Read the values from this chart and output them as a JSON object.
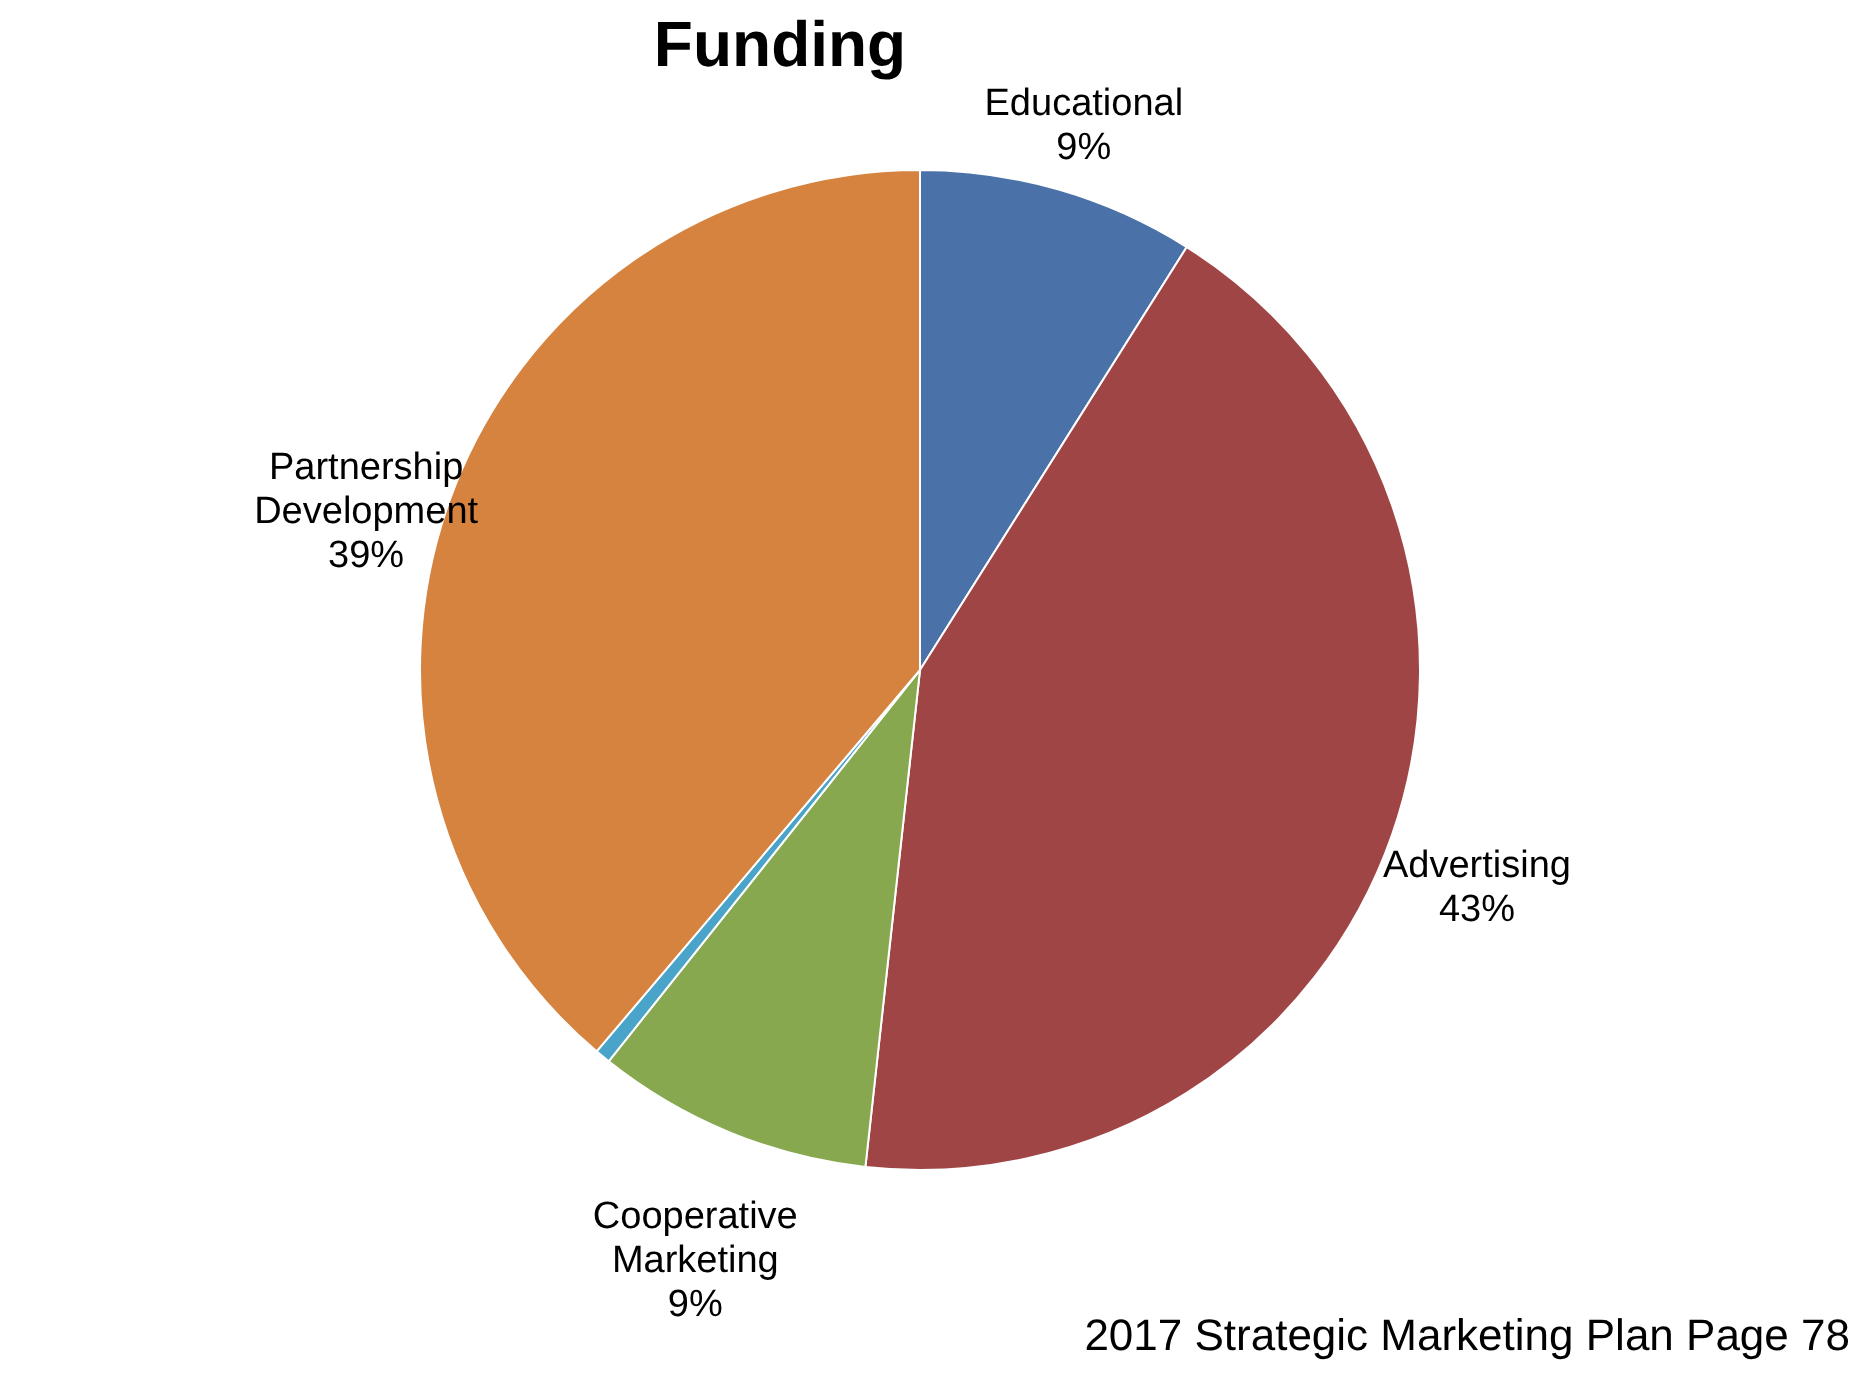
{
  "chart_data": {
    "type": "pie",
    "title": "Funding",
    "categories": [
      "Educational",
      "Advertising",
      "Cooperative Marketing",
      null,
      "Partnership Development"
    ],
    "values": [
      9,
      43,
      9,
      0.5,
      39
    ],
    "value_labels": [
      "9%",
      "43%",
      "9%",
      null,
      "39%"
    ],
    "colors": [
      "#4a72a8",
      "#a04545",
      "#87a84e",
      "#4aa3c8",
      "#d5833f"
    ],
    "annotations": [
      "2017 Strategic Marketing Plan Page 78"
    ]
  }
}
